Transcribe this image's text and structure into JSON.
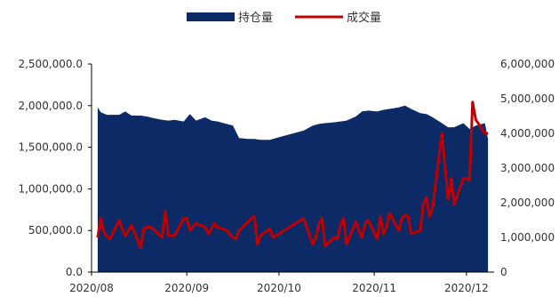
{
  "chart_data": {
    "type": "area+line",
    "legend": {
      "placement": "top-center",
      "items": [
        {
          "name": "持仓量",
          "color": "#0b2a66",
          "kind": "area"
        },
        {
          "name": "成交量",
          "color": "#c00000",
          "kind": "line"
        }
      ]
    },
    "x_ticks": [
      "2020/08",
      "2020/09",
      "2020/10",
      "2020/11",
      "2020/12"
    ],
    "y_left": {
      "min": 0,
      "max": 2500000,
      "ticks": [
        "0.0",
        "500,000.0",
        "1,000,000.0",
        "1,500,000.0",
        "2,000,000.0",
        "2,500,000.0"
      ]
    },
    "y_right": {
      "min": 0,
      "max": 6000000,
      "ticks": [
        "0",
        "1,000,000",
        "2,000,000",
        "3,000,000",
        "4,000,000",
        "5,000,000",
        "6,000,000"
      ]
    },
    "series": [
      {
        "name": "持仓量",
        "axis": "left",
        "x": [
          "2020-08-03",
          "2020-08-04",
          "2020-08-06",
          "2020-08-10",
          "2020-08-12",
          "2020-08-14",
          "2020-08-17",
          "2020-08-19",
          "2020-08-21",
          "2020-08-24",
          "2020-08-26",
          "2020-08-28",
          "2020-08-31",
          "2020-09-02",
          "2020-09-04",
          "2020-09-07",
          "2020-09-09",
          "2020-09-11",
          "2020-09-14",
          "2020-09-16",
          "2020-09-18",
          "2020-09-21",
          "2020-09-23",
          "2020-09-25",
          "2020-09-28",
          "2020-09-30",
          "2020-10-09",
          "2020-10-12",
          "2020-10-14",
          "2020-10-16",
          "2020-10-19",
          "2020-10-21",
          "2020-10-23",
          "2020-10-26",
          "2020-10-28",
          "2020-10-30",
          "2020-11-02",
          "2020-11-04",
          "2020-11-06",
          "2020-11-09",
          "2020-11-11",
          "2020-11-13",
          "2020-11-16",
          "2020-11-18",
          "2020-11-20",
          "2020-11-23",
          "2020-11-25",
          "2020-11-27",
          "2020-11-30",
          "2020-12-02",
          "2020-12-04",
          "2020-12-07",
          "2020-12-08"
        ],
        "values": [
          1980000,
          1920000,
          1890000,
          1890000,
          1930000,
          1880000,
          1880000,
          1870000,
          1850000,
          1830000,
          1820000,
          1830000,
          1810000,
          1900000,
          1820000,
          1860000,
          1820000,
          1810000,
          1780000,
          1760000,
          1610000,
          1600000,
          1600000,
          1590000,
          1590000,
          1610000,
          1700000,
          1760000,
          1780000,
          1790000,
          1800000,
          1810000,
          1820000,
          1870000,
          1930000,
          1940000,
          1930000,
          1950000,
          1960000,
          1980000,
          2000000,
          1960000,
          1910000,
          1900000,
          1860000,
          1790000,
          1740000,
          1740000,
          1790000,
          1720000,
          1760000,
          1790000,
          1600000
        ]
      },
      {
        "name": "成交量",
        "axis": "right",
        "x": [
          "2020-08-03",
          "2020-08-04",
          "2020-08-05",
          "2020-08-06",
          "2020-08-07",
          "2020-08-10",
          "2020-08-11",
          "2020-08-12",
          "2020-08-13",
          "2020-08-14",
          "2020-08-17",
          "2020-08-18",
          "2020-08-19",
          "2020-08-20",
          "2020-08-21",
          "2020-08-24",
          "2020-08-25",
          "2020-08-26",
          "2020-08-27",
          "2020-08-28",
          "2020-08-31",
          "2020-09-01",
          "2020-09-02",
          "2020-09-03",
          "2020-09-04",
          "2020-09-07",
          "2020-09-08",
          "2020-09-09",
          "2020-09-10",
          "2020-09-11",
          "2020-09-14",
          "2020-09-15",
          "2020-09-16",
          "2020-09-17",
          "2020-09-18",
          "2020-09-21",
          "2020-09-22",
          "2020-09-23",
          "2020-09-24",
          "2020-09-25",
          "2020-09-28",
          "2020-09-29",
          "2020-09-30",
          "2020-10-09",
          "2020-10-12",
          "2020-10-13",
          "2020-10-14",
          "2020-10-15",
          "2020-10-16",
          "2020-10-19",
          "2020-10-20",
          "2020-10-21",
          "2020-10-22",
          "2020-10-23",
          "2020-10-26",
          "2020-10-27",
          "2020-10-28",
          "2020-10-29",
          "2020-10-30",
          "2020-11-02",
          "2020-11-03",
          "2020-11-04",
          "2020-11-05",
          "2020-11-06",
          "2020-11-09",
          "2020-11-10",
          "2020-11-11",
          "2020-11-12",
          "2020-11-13",
          "2020-11-16",
          "2020-11-17",
          "2020-11-18",
          "2020-11-19",
          "2020-11-20",
          "2020-11-23",
          "2020-11-24",
          "2020-11-25",
          "2020-11-26",
          "2020-11-27",
          "2020-11-30",
          "2020-12-01",
          "2020-12-02",
          "2020-12-03",
          "2020-12-04",
          "2020-12-07",
          "2020-12-08"
        ],
        "values": [
          1000000,
          1550000,
          1150000,
          1050000,
          950000,
          1500000,
          1250000,
          1050000,
          1200000,
          1350000,
          700000,
          1250000,
          1300000,
          1300000,
          1250000,
          1000000,
          1750000,
          1050000,
          1050000,
          1050000,
          1550000,
          1550000,
          1200000,
          1300000,
          1400000,
          1300000,
          1100000,
          1250000,
          1400000,
          1300000,
          1200000,
          1100000,
          1000000,
          950000,
          1200000,
          1450000,
          1550000,
          1600000,
          800000,
          1050000,
          1250000,
          1000000,
          1050000,
          1550000,
          800000,
          1000000,
          1400000,
          1550000,
          750000,
          1000000,
          950000,
          1350000,
          1550000,
          800000,
          1450000,
          1200000,
          1000000,
          1400000,
          1500000,
          950000,
          1600000,
          1100000,
          1300000,
          1700000,
          1200000,
          1550000,
          1650000,
          1600000,
          1100000,
          1200000,
          2000000,
          2150000,
          1600000,
          1850000,
          4000000,
          3100000,
          2100000,
          2700000,
          1950000,
          2700000,
          2700000,
          2650000,
          4900000,
          4400000,
          4000000,
          4000000
        ]
      }
    ]
  }
}
